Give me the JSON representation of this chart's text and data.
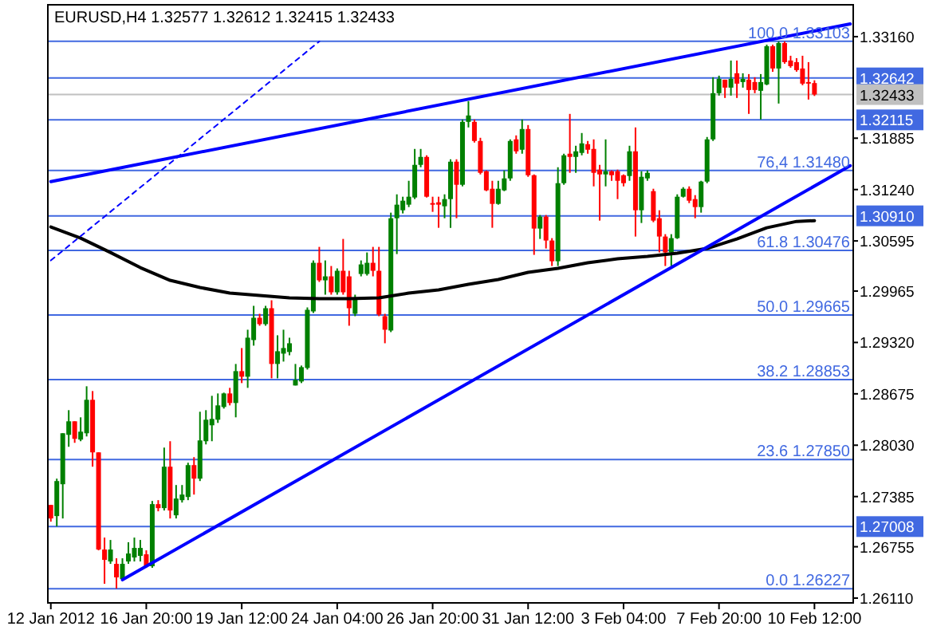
{
  "chart_data": {
    "type": "candlestick",
    "title": "EURUSD,H4  1.32577 1.32612 1.32415 1.32433",
    "categories": [
      "12 Jan 2012",
      null,
      null,
      null,
      null,
      null,
      null,
      null,
      null,
      null,
      null,
      null,
      null,
      null,
      null,
      null,
      "16 Jan 20:00",
      null,
      null,
      null,
      null,
      null,
      null,
      null,
      null,
      null,
      null,
      null,
      null,
      null,
      null,
      null,
      "19 Jan 12:00",
      null,
      null,
      null,
      null,
      null,
      null,
      null,
      null,
      null,
      null,
      null,
      null,
      null,
      null,
      null,
      "24 Jan 04:00",
      null,
      null,
      null,
      null,
      null,
      null,
      null,
      null,
      null,
      null,
      null,
      null,
      null,
      null,
      null,
      "26 Jan 20:00",
      null,
      null,
      null,
      null,
      null,
      null,
      null,
      null,
      null,
      null,
      null,
      null,
      null,
      null,
      null,
      "31 Jan 12:00",
      null,
      null,
      null,
      null,
      null,
      null,
      null,
      null,
      null,
      null,
      null,
      null,
      null,
      null,
      null,
      "3 Feb 04:00",
      null,
      null,
      null,
      null,
      null,
      null,
      null,
      null,
      null,
      null,
      null,
      null,
      null,
      null,
      null,
      "7 Feb 20:00",
      null,
      null,
      null,
      null,
      null,
      null,
      null,
      null,
      null,
      null,
      null,
      null,
      null,
      null,
      null,
      "10 Feb 12:00",
      null,
      null,
      null,
      null,
      null,
      null
    ],
    "ohlc": [
      [
        1.2728,
        1.2728,
        1.2707,
        1.2711
      ],
      [
        1.2714,
        1.2761,
        1.2701,
        1.2758
      ],
      [
        1.2754,
        1.2818,
        1.2711,
        1.2818
      ],
      [
        1.2816,
        1.2847,
        1.2801,
        1.2833
      ],
      [
        1.2833,
        1.2833,
        1.2806,
        1.2811
      ],
      [
        1.281,
        1.2838,
        1.2808,
        1.282
      ],
      [
        1.2818,
        1.2877,
        1.2814,
        1.286
      ],
      [
        1.286,
        1.2871,
        1.2776,
        1.2794
      ],
      [
        1.2794,
        1.2794,
        1.2671,
        1.2672
      ],
      [
        1.2672,
        1.2687,
        1.2629,
        1.2659
      ],
      [
        1.2657,
        1.2684,
        1.2654,
        1.2672
      ],
      [
        1.2654,
        1.2661,
        1.2623,
        1.2637
      ],
      [
        1.2635,
        1.2661,
        1.2634,
        1.2654
      ],
      [
        1.2657,
        1.2681,
        1.2654,
        1.2667
      ],
      [
        1.2662,
        1.2687,
        1.2657,
        1.2674
      ],
      [
        1.2664,
        1.2684,
        1.2657,
        1.2674
      ],
      [
        1.2666,
        1.2671,
        1.2649,
        1.2651
      ],
      [
        1.2651,
        1.2733,
        1.2649,
        1.2729
      ],
      [
        1.2729,
        1.2734,
        1.272,
        1.2724
      ],
      [
        1.2724,
        1.28,
        1.2721,
        1.2776
      ],
      [
        1.2776,
        1.2808,
        1.2711,
        1.2721
      ],
      [
        1.2715,
        1.2753,
        1.2711,
        1.2736
      ],
      [
        1.2734,
        1.2753,
        1.2731,
        1.2741
      ],
      [
        1.2738,
        1.2781,
        1.2734,
        1.2778
      ],
      [
        1.2778,
        1.2788,
        1.2741,
        1.2761
      ],
      [
        1.2761,
        1.2845,
        1.2758,
        1.2809
      ],
      [
        1.2808,
        1.2847,
        1.2804,
        1.2835
      ],
      [
        1.2828,
        1.2865,
        1.2808,
        1.2836
      ],
      [
        1.2835,
        1.2868,
        1.2831,
        1.2853
      ],
      [
        1.2851,
        1.2869,
        1.2849,
        1.2868
      ],
      [
        1.2868,
        1.2875,
        1.2853,
        1.2856
      ],
      [
        1.2856,
        1.2905,
        1.2838,
        1.2896
      ],
      [
        1.2896,
        1.2925,
        1.2881,
        1.2889
      ],
      [
        1.2889,
        1.2948,
        1.2875,
        1.2938
      ],
      [
        1.2935,
        1.2978,
        1.2928,
        1.2963
      ],
      [
        1.2963,
        1.2968,
        1.2953,
        1.2955
      ],
      [
        1.2955,
        1.2978,
        1.2953,
        1.2975
      ],
      [
        1.2975,
        1.2985,
        1.2887,
        1.2905
      ],
      [
        1.2905,
        1.2941,
        1.2887,
        1.2921
      ],
      [
        1.2918,
        1.2948,
        1.2908,
        1.2925
      ],
      [
        1.292,
        1.2938,
        1.2916,
        1.2931
      ],
      [
        1.2878,
        1.2905,
        1.2878,
        1.2885
      ],
      [
        1.2883,
        1.2903,
        1.2881,
        1.2901
      ],
      [
        1.29,
        1.2976,
        1.2898,
        1.2973
      ],
      [
        1.2971,
        1.3035,
        1.2969,
        1.3032
      ],
      [
        1.3032,
        1.3052,
        1.3008,
        1.301
      ],
      [
        1.301,
        1.3035,
        1.2992,
        1.3015
      ],
      [
        1.3015,
        1.3028,
        1.2992,
        1.2995
      ],
      [
        1.2995,
        1.3025,
        1.2992,
        1.3022
      ],
      [
        1.3022,
        1.3062,
        1.2992,
        1.2995
      ],
      [
        1.3015,
        1.3022,
        1.2953,
        1.2975
      ],
      [
        1.2968,
        1.2992,
        1.2965,
        1.2988
      ],
      [
        1.3018,
        1.3035,
        1.3015,
        1.303
      ],
      [
        1.3018,
        1.3045,
        1.3016,
        1.3032
      ],
      [
        1.3032,
        1.3052,
        1.3015,
        1.3022
      ],
      [
        1.3022,
        1.3052,
        1.2965,
        1.2967
      ],
      [
        1.2965,
        1.2968,
        1.2931,
        1.2948
      ],
      [
        1.2947,
        1.3095,
        1.2945,
        1.3088
      ],
      [
        1.3088,
        1.3118,
        1.3043,
        1.3105
      ],
      [
        1.3098,
        1.3115,
        1.3094,
        1.311
      ],
      [
        1.3105,
        1.3135,
        1.3102,
        1.3115
      ],
      [
        1.3114,
        1.3175,
        1.3112,
        1.3155
      ],
      [
        1.3155,
        1.3175,
        1.3152,
        1.3165
      ],
      [
        1.3165,
        1.3167,
        1.3114,
        1.3115
      ],
      [
        1.3107,
        1.3115,
        1.3096,
        1.3105
      ],
      [
        1.3108,
        1.3115,
        1.3076,
        1.3105
      ],
      [
        1.3103,
        1.3118,
        1.3088,
        1.3112
      ],
      [
        1.3112,
        1.3162,
        1.3076,
        1.3159
      ],
      [
        1.3159,
        1.3162,
        1.3088,
        1.313
      ],
      [
        1.313,
        1.3212,
        1.3128,
        1.3209
      ],
      [
        1.3209,
        1.3235,
        1.3202,
        1.3217
      ],
      [
        1.3209,
        1.3212,
        1.3183,
        1.3185
      ],
      [
        1.3185,
        1.3189,
        1.3143,
        1.3145
      ],
      [
        1.3147,
        1.3148,
        1.3122,
        1.3123
      ],
      [
        1.3125,
        1.3135,
        1.3076,
        1.3106
      ],
      [
        1.3106,
        1.3135,
        1.3105,
        1.3125
      ],
      [
        1.3123,
        1.3148,
        1.3122,
        1.3138
      ],
      [
        1.3138,
        1.3187,
        1.3135,
        1.3185
      ],
      [
        1.3187,
        1.3192,
        1.3169,
        1.3172
      ],
      [
        1.3174,
        1.3212,
        1.3169,
        1.32
      ],
      [
        1.32,
        1.3205,
        1.314,
        1.3142
      ],
      [
        1.3142,
        1.3143,
        1.3042,
        1.3075
      ],
      [
        1.3075,
        1.3092,
        1.3062,
        1.309
      ],
      [
        1.309,
        1.3092,
        1.305,
        1.306
      ],
      [
        1.306,
        1.3063,
        1.3028,
        1.3034
      ],
      [
        1.3034,
        1.3152,
        1.3028,
        1.3132
      ],
      [
        1.3132,
        1.3169,
        1.313,
        1.3167
      ],
      [
        1.3169,
        1.3219,
        1.3145,
        1.3165
      ],
      [
        1.3165,
        1.3179,
        1.3145,
        1.3172
      ],
      [
        1.317,
        1.3195,
        1.3167,
        1.3182
      ],
      [
        1.3181,
        1.3185,
        1.3169,
        1.3174
      ],
      [
        1.3175,
        1.3187,
        1.3128,
        1.3145
      ],
      [
        1.3149,
        1.3155,
        1.3085,
        1.3143
      ],
      [
        1.3143,
        1.3187,
        1.3128,
        1.3147
      ],
      [
        1.3147,
        1.3148,
        1.3135,
        1.3142
      ],
      [
        1.3147,
        1.3149,
        1.3112,
        1.3135
      ],
      [
        1.3142,
        1.3143,
        1.3128,
        1.3132
      ],
      [
        1.3141,
        1.3179,
        1.3135,
        1.3172
      ],
      [
        1.3172,
        1.3202,
        1.3065,
        1.3098
      ],
      [
        1.3098,
        1.3147,
        1.3082,
        1.314
      ],
      [
        1.3138,
        1.3148,
        1.3135,
        1.3145
      ],
      [
        1.3122,
        1.3125,
        1.3083,
        1.3085
      ],
      [
        1.3088,
        1.3098,
        1.3045,
        1.3065
      ],
      [
        1.3065,
        1.3068,
        1.3028,
        1.3045
      ],
      [
        1.3045,
        1.3068,
        1.3028,
        1.3063
      ],
      [
        1.3063,
        1.3118,
        1.3062,
        1.3115
      ],
      [
        1.3115,
        1.3127,
        1.3114,
        1.3125
      ],
      [
        1.3125,
        1.3128,
        1.3107,
        1.311
      ],
      [
        1.3112,
        1.3117,
        1.3088,
        1.3102
      ],
      [
        1.3102,
        1.3135,
        1.3095,
        1.3134
      ],
      [
        1.3134,
        1.319,
        1.3132,
        1.3187
      ],
      [
        1.3187,
        1.3265,
        1.3185,
        1.3245
      ],
      [
        1.3245,
        1.3267,
        1.3242,
        1.3263
      ],
      [
        1.3262,
        1.3262,
        1.3239,
        1.3252
      ],
      [
        1.3252,
        1.3286,
        1.3242,
        1.3263
      ],
      [
        1.327,
        1.3286,
        1.3239,
        1.3257
      ],
      [
        1.3259,
        1.327,
        1.3252,
        1.3263
      ],
      [
        1.3262,
        1.3269,
        1.3219,
        1.3249
      ],
      [
        1.3259,
        1.3265,
        1.3245,
        1.3249
      ],
      [
        1.3248,
        1.3269,
        1.3212,
        1.3259
      ],
      [
        1.3256,
        1.3306,
        1.3255,
        1.3304
      ],
      [
        1.3304,
        1.3306,
        1.3272,
        1.3276
      ],
      [
        1.3276,
        1.331,
        1.3232,
        1.3308
      ],
      [
        1.3308,
        1.331,
        1.3282,
        1.3284
      ],
      [
        1.3286,
        1.3292,
        1.3277,
        1.3279
      ],
      [
        1.3284,
        1.3289,
        1.3272,
        1.3274
      ],
      [
        1.3276,
        1.3292,
        1.3255,
        1.3257
      ],
      [
        1.3259,
        1.3284,
        1.3237,
        1.3257
      ],
      [
        1.32577,
        1.32612,
        1.32415,
        1.32433
      ],
      null,
      null,
      null,
      null,
      null,
      null
    ],
    "ylim": [
      1.2605,
      1.3356
    ],
    "yticks": [
      {
        "value": 1.3316,
        "label": "1.33160"
      },
      {
        "value": 1.31885,
        "label": "1.31885"
      },
      {
        "value": 1.3124,
        "label": "1.31240"
      },
      {
        "value": 1.30595,
        "label": "1.30595"
      },
      {
        "value": 1.29965,
        "label": "1.29965"
      },
      {
        "value": 1.2932,
        "label": "1.29320"
      },
      {
        "value": 1.28675,
        "label": "1.28675"
      },
      {
        "value": 1.2803,
        "label": "1.28030"
      },
      {
        "value": 1.27385,
        "label": "1.27385"
      },
      {
        "value": 1.26755,
        "label": "1.26755"
      },
      {
        "value": 1.2611,
        "label": "1.26110"
      }
    ],
    "series": [
      {
        "type": "line",
        "color": "#000000",
        "line_style": "solid",
        "values": [
          1.3077,
          null,
          null,
          null,
          null,
          1.3063,
          null,
          null,
          null,
          null,
          1.3045,
          null,
          null,
          null,
          null,
          1.3026,
          null,
          null,
          null,
          null,
          1.301,
          null,
          null,
          null,
          null,
          1.3001,
          null,
          null,
          null,
          null,
          1.2994,
          null,
          null,
          null,
          null,
          1.2991,
          null,
          null,
          null,
          null,
          1.2988,
          null,
          null,
          null,
          null,
          1.2987,
          null,
          null,
          null,
          null,
          1.2987,
          null,
          null,
          null,
          null,
          1.2988,
          null,
          null,
          null,
          null,
          1.2994,
          null,
          null,
          null,
          null,
          1.2998,
          null,
          null,
          null,
          null,
          1.3005,
          null,
          null,
          null,
          null,
          1.3011,
          null,
          null,
          null,
          null,
          1.302,
          null,
          null,
          null,
          null,
          1.3025,
          null,
          null,
          null,
          null,
          1.3032,
          null,
          null,
          null,
          null,
          1.3037,
          null,
          null,
          null,
          null,
          1.304,
          null,
          null,
          null,
          null,
          1.3044,
          null,
          null,
          null,
          null,
          1.305,
          null,
          null,
          null,
          null,
          1.3062,
          null,
          null,
          null,
          null,
          1.3076,
          null,
          null,
          null,
          null,
          1.3084,
          null,
          null,
          1.3085,
          null,
          null,
          null,
          null,
          null,
          null
        ]
      },
      {
        "type": "line",
        "color": "#0000ff",
        "line_style": "solid",
        "values": [
          1.3134,
          null,
          null,
          null,
          null,
          null,
          null,
          null,
          null,
          null,
          null,
          null,
          null,
          null,
          null,
          null,
          null,
          null,
          null,
          null,
          null,
          null,
          null,
          null,
          null,
          null,
          null,
          null,
          null,
          null,
          null,
          null,
          null,
          null,
          null,
          null,
          null,
          null,
          null,
          null,
          null,
          null,
          null,
          null,
          null,
          null,
          null,
          null,
          null,
          null,
          null,
          null,
          null,
          null,
          null,
          null,
          null,
          null,
          null,
          null,
          null,
          null,
          null,
          null,
          null,
          null,
          null,
          null,
          null,
          null,
          null,
          null,
          null,
          null,
          null,
          null,
          null,
          null,
          null,
          null,
          null,
          null,
          null,
          null,
          null,
          null,
          null,
          null,
          null,
          null,
          null,
          null,
          null,
          null,
          null,
          null,
          null,
          null,
          null,
          null,
          null,
          null,
          null,
          null,
          null,
          null,
          null,
          null,
          null,
          null,
          null,
          null,
          null,
          null,
          null,
          null,
          null,
          null,
          null,
          null,
          null,
          null,
          null,
          null,
          null,
          null,
          null,
          null,
          null,
          null,
          null,
          null,
          null,
          null,
          1.3332
        ]
      },
      {
        "type": "line",
        "color": "#0000ff",
        "line_style": "solid",
        "values": [
          null,
          null,
          null,
          null,
          null,
          null,
          null,
          null,
          null,
          null,
          null,
          null,
          1.2634,
          null,
          null,
          null,
          null,
          null,
          null,
          null,
          null,
          null,
          null,
          null,
          null,
          null,
          null,
          null,
          null,
          null,
          null,
          null,
          null,
          null,
          null,
          null,
          null,
          null,
          null,
          null,
          null,
          null,
          null,
          null,
          null,
          null,
          null,
          null,
          null,
          null,
          null,
          null,
          null,
          null,
          null,
          null,
          null,
          null,
          null,
          null,
          null,
          null,
          null,
          null,
          null,
          null,
          null,
          null,
          null,
          null,
          null,
          null,
          null,
          null,
          null,
          null,
          null,
          null,
          null,
          null,
          null,
          null,
          null,
          null,
          null,
          null,
          null,
          null,
          null,
          null,
          null,
          null,
          null,
          null,
          null,
          null,
          null,
          null,
          null,
          null,
          null,
          null,
          null,
          null,
          null,
          null,
          null,
          null,
          null,
          null,
          null,
          null,
          null,
          null,
          null,
          null,
          null,
          null,
          null,
          null,
          null,
          null,
          null,
          null,
          null,
          null,
          null,
          null,
          null,
          null,
          null,
          null,
          null,
          null,
          1.3154
        ]
      },
      {
        "type": "line",
        "color": "#0000ff",
        "line_style": "dashed",
        "values": [
          1.3035,
          null,
          null,
          null,
          null,
          null,
          null,
          null,
          null,
          null,
          null,
          null,
          null,
          null,
          null,
          null,
          null,
          null,
          null,
          null,
          null,
          null,
          null,
          null,
          null,
          null,
          null,
          null,
          null,
          null,
          null,
          null,
          null,
          null,
          null,
          null,
          null,
          null,
          null,
          null,
          null,
          null,
          null,
          null,
          null,
          1.331,
          null,
          null,
          null,
          null,
          null,
          null,
          null,
          null,
          null,
          null,
          null,
          null,
          null,
          null,
          null,
          null,
          null,
          null,
          null,
          null,
          null,
          null,
          null,
          null,
          null,
          null,
          null,
          null,
          null,
          null,
          null,
          null,
          null,
          null,
          null,
          null,
          null,
          null,
          null,
          null,
          null,
          null,
          null,
          null,
          null,
          null,
          null,
          null,
          null,
          null,
          null,
          null,
          null,
          null,
          null,
          null,
          null,
          null,
          null,
          null,
          null,
          null,
          null,
          null,
          null,
          null,
          null,
          null,
          null,
          null,
          null,
          null,
          null,
          null,
          null,
          null,
          null,
          null,
          null,
          null,
          null,
          null,
          null,
          null,
          null,
          null,
          null,
          null,
          null
        ]
      }
    ],
    "ref_lines": [
      {
        "axis": "y",
        "value": 1.33103,
        "color": "#4169e1"
      },
      {
        "axis": "y",
        "value": 1.3148,
        "color": "#4169e1"
      },
      {
        "axis": "y",
        "value": 1.30476,
        "color": "#4169e1"
      },
      {
        "axis": "y",
        "value": 1.29665,
        "color": "#4169e1"
      },
      {
        "axis": "y",
        "value": 1.28853,
        "color": "#4169e1"
      },
      {
        "axis": "y",
        "value": 1.2785,
        "color": "#4169e1"
      },
      {
        "axis": "y",
        "value": 1.26227,
        "color": "#4169e1"
      },
      {
        "axis": "y",
        "value": 1.32642,
        "label": "1.32642",
        "color": "#4169e1"
      },
      {
        "axis": "y",
        "value": 1.32433,
        "label": "1.32433",
        "color": "#c0c0c0"
      },
      {
        "axis": "y",
        "value": 1.32115,
        "label": "1.32115",
        "color": "#4169e1"
      },
      {
        "axis": "y",
        "value": 1.3091,
        "label": "1.30910",
        "color": "#4169e1"
      },
      {
        "axis": "y",
        "value": 1.27008,
        "label": "1.27008",
        "color": "#4169e1"
      }
    ],
    "annotations": [
      "100.0 1.33103",
      "76,4 1.31480",
      "61.8 1.30476",
      "50.0 1.29665",
      "38.2 1.28853",
      "23.6 1.27850",
      "0.0 1.26227"
    ]
  }
}
